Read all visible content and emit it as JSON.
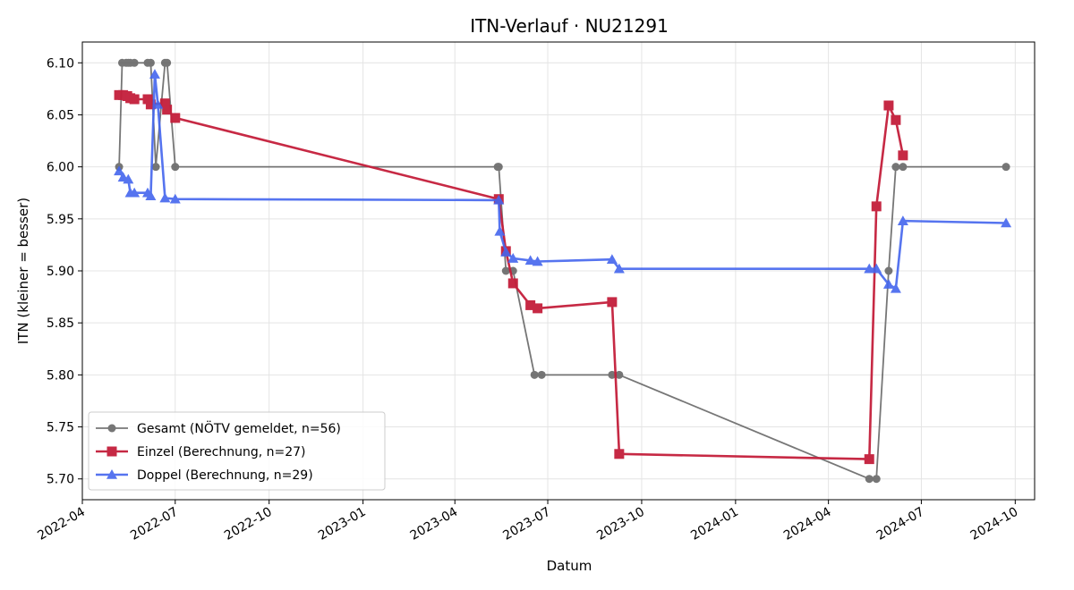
{
  "chart_data": {
    "type": "line",
    "title": "ITN-Verlauf · NU21291",
    "xlabel": "Datum",
    "ylabel": "ITN  (kleiner = besser)",
    "x_type": "date",
    "xlim": [
      "2022-04-01",
      "2024-10-20"
    ],
    "ylim": [
      5.68,
      6.12
    ],
    "x_ticks": [
      "2022-04",
      "2022-07",
      "2022-10",
      "2023-01",
      "2023-04",
      "2023-07",
      "2023-10",
      "2024-01",
      "2024-04",
      "2024-07",
      "2024-10"
    ],
    "y_ticks": [
      "5.70",
      "5.75",
      "5.80",
      "5.85",
      "5.90",
      "5.95",
      "6.00",
      "6.05",
      "6.10"
    ],
    "grid": true,
    "legend_position": "lower-left",
    "series": [
      {
        "name": "Gesamt (NÖTV gemeldet, n=56)",
        "color": "#555555",
        "marker": "circle",
        "points": [
          [
            "2022-05-07",
            6.0
          ],
          [
            "2022-05-10",
            6.1
          ],
          [
            "2022-05-14",
            6.1
          ],
          [
            "2022-05-16",
            6.1
          ],
          [
            "2022-05-18",
            6.1
          ],
          [
            "2022-05-22",
            6.1
          ],
          [
            "2022-06-04",
            6.1
          ],
          [
            "2022-06-07",
            6.1
          ],
          [
            "2022-06-12",
            6.0
          ],
          [
            "2022-06-21",
            6.1
          ],
          [
            "2022-06-23",
            6.1
          ],
          [
            "2022-07-01",
            6.0
          ],
          [
            "2023-05-13",
            6.0
          ],
          [
            "2023-05-14",
            6.0
          ],
          [
            "2023-05-21",
            5.9
          ],
          [
            "2023-05-28",
            5.9
          ],
          [
            "2023-06-18",
            5.8
          ],
          [
            "2023-06-25",
            5.8
          ],
          [
            "2023-09-02",
            5.8
          ],
          [
            "2023-09-09",
            5.8
          ],
          [
            "2024-05-11",
            5.7
          ],
          [
            "2024-05-18",
            5.7
          ],
          [
            "2024-05-30",
            5.9
          ],
          [
            "2024-06-06",
            6.0
          ],
          [
            "2024-06-13",
            6.0
          ],
          [
            "2024-09-22",
            6.0
          ]
        ]
      },
      {
        "name": "Einzel (Berechnung, n=27)",
        "color": "#c41e3a",
        "marker": "square",
        "points": [
          [
            "2022-05-07",
            6.069
          ],
          [
            "2022-05-11",
            6.069
          ],
          [
            "2022-05-15",
            6.068
          ],
          [
            "2022-05-18",
            6.066
          ],
          [
            "2022-05-22",
            6.065
          ],
          [
            "2022-06-04",
            6.065
          ],
          [
            "2022-06-07",
            6.06
          ],
          [
            "2022-06-21",
            6.061
          ],
          [
            "2022-06-23",
            6.055
          ],
          [
            "2022-07-01",
            6.047
          ],
          [
            "2023-05-14",
            5.969
          ],
          [
            "2023-05-21",
            5.919
          ],
          [
            "2023-05-28",
            5.888
          ],
          [
            "2023-06-14",
            5.867
          ],
          [
            "2023-06-21",
            5.864
          ],
          [
            "2023-09-02",
            5.87
          ],
          [
            "2023-09-09",
            5.724
          ],
          [
            "2024-05-11",
            5.719
          ],
          [
            "2024-05-18",
            5.962
          ],
          [
            "2024-05-30",
            6.059
          ],
          [
            "2024-06-06",
            6.045
          ],
          [
            "2024-06-13",
            6.011
          ]
        ]
      },
      {
        "name": "Doppel (Berechnung, n=29)",
        "color": "#4466ee",
        "marker": "triangle",
        "points": [
          [
            "2022-05-07",
            5.996
          ],
          [
            "2022-05-11",
            5.99
          ],
          [
            "2022-05-16",
            5.988
          ],
          [
            "2022-05-18",
            5.975
          ],
          [
            "2022-05-22",
            5.975
          ],
          [
            "2022-06-04",
            5.975
          ],
          [
            "2022-06-07",
            5.972
          ],
          [
            "2022-06-11",
            6.089
          ],
          [
            "2022-06-14",
            6.06
          ],
          [
            "2022-06-21",
            5.97
          ],
          [
            "2022-07-01",
            5.969
          ],
          [
            "2023-05-14",
            5.968
          ],
          [
            "2023-05-15",
            5.938
          ],
          [
            "2023-05-21",
            5.918
          ],
          [
            "2023-05-28",
            5.912
          ],
          [
            "2023-06-14",
            5.91
          ],
          [
            "2023-06-21",
            5.909
          ],
          [
            "2023-09-02",
            5.911
          ],
          [
            "2023-09-09",
            5.902
          ],
          [
            "2024-05-11",
            5.902
          ],
          [
            "2024-05-18",
            5.902
          ],
          [
            "2024-05-30",
            5.887
          ],
          [
            "2024-06-06",
            5.883
          ],
          [
            "2024-06-13",
            5.948
          ],
          [
            "2024-09-22",
            5.946
          ]
        ]
      }
    ]
  }
}
